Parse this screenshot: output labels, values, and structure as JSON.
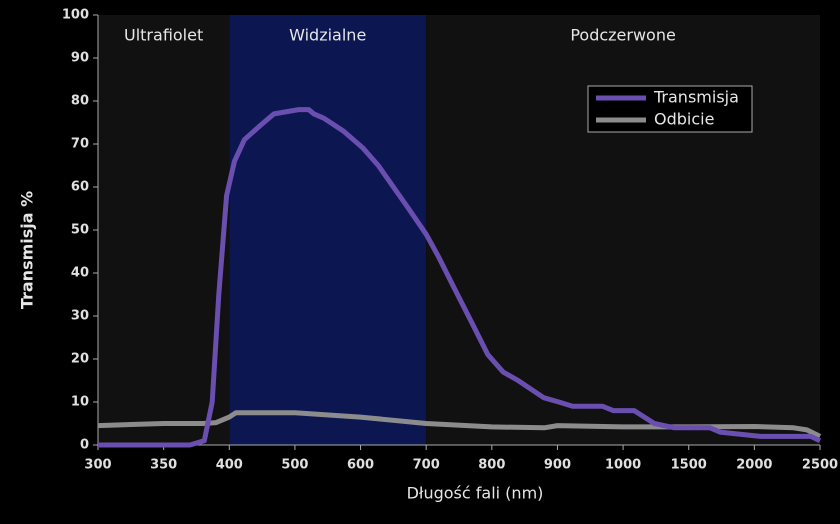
{
  "chart_data": {
    "type": "line",
    "x_label": "Długość fali (nm)",
    "y_label": "Transmisja %",
    "xticks": [
      300,
      350,
      400,
      500,
      600,
      700,
      800,
      900,
      1000,
      1500,
      2000,
      2500
    ],
    "xlim": [
      300,
      2500
    ],
    "ylim": [
      0,
      100
    ],
    "yticks": [
      0,
      10,
      20,
      30,
      40,
      50,
      60,
      70,
      80,
      90,
      100
    ],
    "regions": [
      {
        "label": "Ultrafiolet",
        "start": 300,
        "end": 400,
        "color": "#111111"
      },
      {
        "label": "Widzialne",
        "start": 400,
        "end": 700,
        "color": "#0c1650"
      },
      {
        "label": "Podczerwone",
        "start": 700,
        "end": 2500,
        "color": "#111111"
      }
    ],
    "legend": "upper right",
    "series": [
      {
        "name": "Transmisja",
        "color": "#6a4fb0",
        "x": [
          300,
          370,
          381,
          387,
          392,
          398,
          408,
          423,
          445,
          468,
          506,
          521,
          529,
          544,
          574,
          604,
          627,
          650,
          673,
          700,
          718,
          741,
          771,
          794,
          817,
          840,
          879,
          902,
          923,
          969,
          985,
          1085,
          1238,
          1392,
          1662,
          1738,
          2046,
          2431,
          2500
        ],
        "values": [
          0,
          0,
          1,
          10,
          35,
          58,
          66,
          71,
          74,
          77,
          78,
          78,
          77,
          76,
          73,
          69,
          65,
          60,
          55,
          49,
          44,
          37,
          28,
          21,
          17,
          15,
          11,
          10,
          9,
          9,
          8,
          8,
          5,
          4,
          4,
          3,
          2,
          2,
          1
        ]
      },
      {
        "name": "Odbicie",
        "color": "#8c8c8c",
        "x": [
          300,
          350,
          380,
          390,
          400,
          410,
          500,
          600,
          700,
          800,
          880,
          900,
          1000,
          1500,
          2000,
          2300,
          2400,
          2500
        ],
        "values": [
          4.5,
          5,
          5,
          5.2,
          6.5,
          7.5,
          7.5,
          6.5,
          5,
          4.2,
          4,
          4.5,
          4.2,
          4.2,
          4.3,
          4,
          3.5,
          2
        ]
      }
    ]
  }
}
